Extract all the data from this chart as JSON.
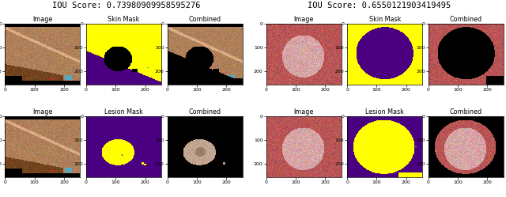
{
  "iou_score_left": "IOU Score: 0.73980909958595276",
  "iou_score_right": "IOU Score: 0.6550121903419495",
  "titles_row1": [
    "Image",
    "Skin Mask",
    "Combined"
  ],
  "titles_row2": [
    "Image",
    "Lesion Mask",
    "Combined"
  ],
  "img_size": 256,
  "figsize": [
    6.4,
    2.49
  ],
  "dpi": 100
}
